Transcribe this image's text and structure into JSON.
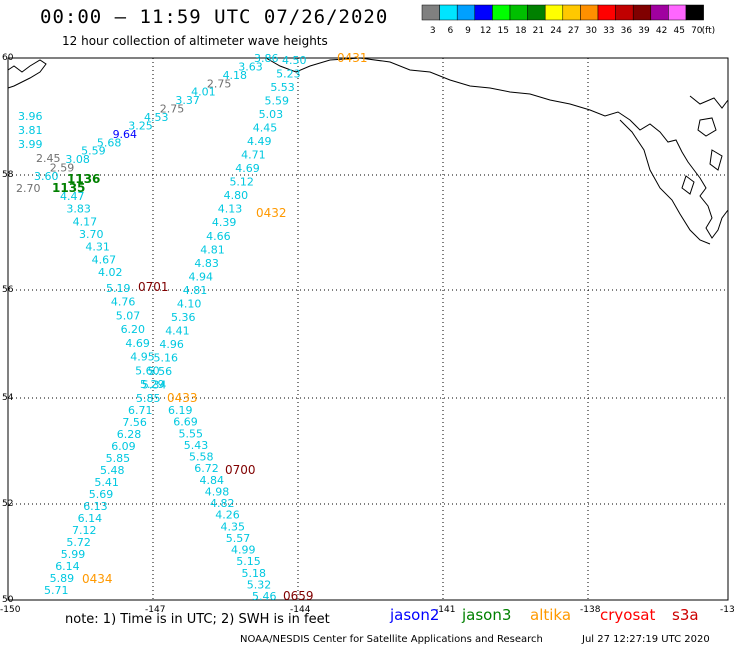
{
  "title": "00:00 – 11:59 UTC 07/26/2020",
  "subtitle": "12 hour collection of altimeter wave heights",
  "legend": {
    "unit": "(ft)",
    "bins": [
      {
        "label": "3",
        "color": "#808080"
      },
      {
        "label": "6",
        "color": "#00e5ff"
      },
      {
        "label": "9",
        "color": "#00a0ff"
      },
      {
        "label": "12",
        "color": "#0000ff"
      },
      {
        "label": "15",
        "color": "#00ff00"
      },
      {
        "label": "18",
        "color": "#00c000"
      },
      {
        "label": "21",
        "color": "#008000"
      },
      {
        "label": "24",
        "color": "#ffff00"
      },
      {
        "label": "27",
        "color": "#ffc800"
      },
      {
        "label": "30",
        "color": "#ff9000"
      },
      {
        "label": "33",
        "color": "#ff0000"
      },
      {
        "label": "36",
        "color": "#c00000"
      },
      {
        "label": "39",
        "color": "#800000"
      },
      {
        "label": "42",
        "color": "#a000a0"
      },
      {
        "label": "45",
        "color": "#ff66ff"
      },
      {
        "label": "70",
        "color": "#000000"
      }
    ]
  },
  "axes": {
    "lat_labels": [
      "60",
      "58",
      "56",
      "54",
      "52",
      "50"
    ],
    "lon_labels": [
      "-150",
      "-147",
      "-144",
      "-141",
      "-138",
      "-13"
    ]
  },
  "tracks": [
    {
      "time": "0431",
      "time_color": "#ff9900",
      "values": [
        "4.50",
        "5.23",
        "5.53",
        "5.59",
        "5.03",
        "4.45",
        "4.49",
        "4.71",
        "4.69",
        "5.12",
        "4.80",
        "4.13",
        "4.39",
        "4.66",
        "4.81",
        "4.83",
        "4.94",
        "4.81",
        "4.10",
        "5.36",
        "4.41",
        "4.96",
        "5.16",
        "5.56",
        "5.34",
        "5.85"
      ]
    },
    {
      "time": "0432",
      "time_color": "#ff9900",
      "values": []
    },
    {
      "time": "0433",
      "time_color": "#ff9900",
      "values": [
        "6.19",
        "6.69",
        "5.55",
        "5.43",
        "5.58",
        "6.72",
        "4.84",
        "4.98",
        "4.82",
        "4.26",
        "4.35",
        "5.57",
        "4.99",
        "5.15",
        "5.18",
        "5.32",
        "5.46"
      ]
    },
    {
      "time": "0434",
      "time_color": "#ff9900",
      "values": [
        "6.71",
        "7.56",
        "6.28",
        "6.09",
        "5.85",
        "5.48",
        "5.41",
        "5.69",
        "6.13",
        "6.14",
        "7.12",
        "5.72",
        "5.99",
        "6.14",
        "5.89",
        "5.71"
      ]
    },
    {
      "time": "0701",
      "time_color": "#800000",
      "values": [
        "5.19",
        "4.76",
        "5.07",
        "6.20",
        "4.69",
        "4.95",
        "5.60",
        "5.29"
      ]
    },
    {
      "time": "0700",
      "time_color": "#800000",
      "values": []
    },
    {
      "time": "0659",
      "time_color": "#800000",
      "values": []
    },
    {
      "time": "1136",
      "time_color": "#008000",
      "values": []
    },
    {
      "time": "1135",
      "time_color": "#008000",
      "values": [
        "4.47",
        "3.83",
        "4.17",
        "3.70",
        "4.31",
        "4.67",
        "4.02"
      ]
    }
  ],
  "northwest_track": {
    "values": [
      "3.86",
      "3.63",
      "4.18",
      "2.75",
      "4.01",
      "3.37",
      "2.75",
      "4.53",
      "3.25",
      "9.64",
      "5.68",
      "5.59",
      "3.08",
      "2.59",
      "3.60"
    ],
    "west_values": [
      "3.96",
      "3.81",
      "3.99",
      "2.45",
      "2.70"
    ]
  },
  "note": "note:  1) Time is in UTC;  2) SWH is in feet",
  "missions": [
    {
      "name": "jason2",
      "color": "#0000ff"
    },
    {
      "name": "jason3",
      "color": "#008000"
    },
    {
      "name": "altika",
      "color": "#ff9900"
    },
    {
      "name": "cryosat",
      "color": "#ff0000"
    },
    {
      "name": "s3a",
      "color": "#cc0000"
    }
  ],
  "credit": "NOAA/NESDIS Center for Satellite Applications and Research",
  "timestamp": "Jul 27 12:27:19 UTC 2020"
}
